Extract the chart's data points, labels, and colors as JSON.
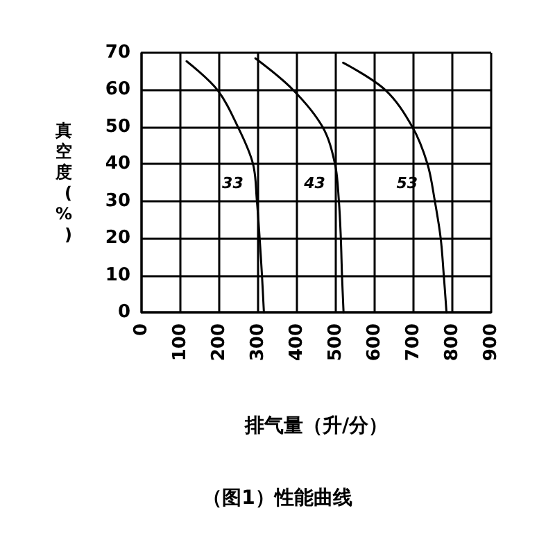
{
  "chart_data": {
    "type": "line",
    "title": "（图1）性能曲线",
    "xlabel": "排气量（升/分）",
    "ylabel": "真空度(%)",
    "xlim": [
      0,
      900
    ],
    "xticks": [
      0,
      100,
      200,
      300,
      400,
      500,
      600,
      700,
      800,
      900
    ],
    "ylim": [
      0,
      70
    ],
    "yticks": [
      0,
      10,
      20,
      30,
      40,
      50,
      60,
      70
    ],
    "grid": true,
    "legend": false,
    "marker": "none",
    "line_style": "solid",
    "series": [
      {
        "name": "33",
        "color": "#000000",
        "x": [
          116,
          195,
          248,
          287,
          297,
          304,
          310,
          315
        ],
        "values": [
          67.7,
          60,
          50,
          40,
          30,
          20,
          10,
          0
        ]
      },
      {
        "name": "43",
        "color": "#000000",
        "x": [
          293,
          390,
          466,
          498,
          508,
          513,
          516,
          520
        ],
        "values": [
          68.5,
          60,
          50,
          40,
          30,
          20,
          10,
          0
        ]
      },
      {
        "name": "53",
        "color": "#000000",
        "x": [
          519,
          627,
          697,
          736,
          755,
          770,
          778,
          785
        ],
        "values": [
          67.3,
          60,
          50,
          40,
          30,
          20,
          10,
          0
        ]
      }
    ]
  }
}
